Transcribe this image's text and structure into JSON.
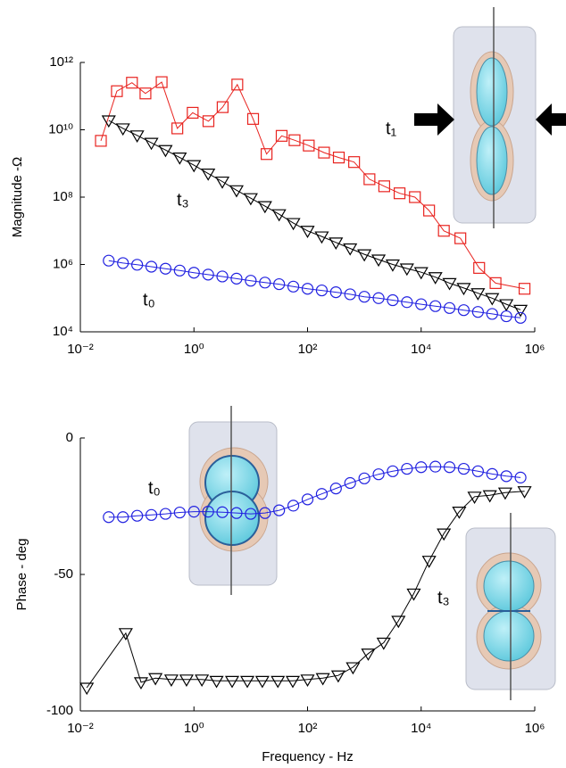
{
  "chart_data": [
    {
      "type": "line",
      "ylabel": "Magnitude -Ω",
      "xscale": "log",
      "yscale": "log",
      "xlim": [
        0.01,
        1000000
      ],
      "ylim": [
        10000,
        1000000000000
      ],
      "xticks": [
        {
          "value": 0.01,
          "label": "10⁻²"
        },
        {
          "value": 1,
          "label": "10⁰"
        },
        {
          "value": 100,
          "label": "10²"
        },
        {
          "value": 10000,
          "label": "10⁴"
        },
        {
          "value": 1000000,
          "label": "10⁶"
        }
      ],
      "yticks": [
        {
          "value": 10000,
          "label": "10⁴"
        },
        {
          "value": 1000000,
          "label": "10⁶"
        },
        {
          "value": 100000000,
          "label": "10⁸"
        },
        {
          "value": 10000000000,
          "label": "10¹⁰"
        },
        {
          "value": 1000000000000,
          "label": "10¹²"
        }
      ],
      "annotations": [
        "t₁",
        "t₃",
        "t₀"
      ],
      "series": [
        {
          "color": "#e8231f",
          "marker": "square",
          "x": [
            0.023,
            0.044,
            0.081,
            0.14,
            0.27,
            0.51,
            0.95,
            1.8,
            3.2,
            5.8,
            11,
            19,
            35,
            59,
            105,
            195,
            355,
            660,
            1230,
            2240,
            4170,
            7760,
            13800,
            25100,
            49000,
            105000,
            204000,
            661000
          ],
          "values": [
            4700000000.0,
            140000000000.0,
            250000000000.0,
            120000000000.0,
            260000000000.0,
            11000000000.0,
            32000000000.0,
            18000000000.0,
            47000000000.0,
            220000000000.0,
            21000000000.0,
            1900000000.0,
            6600000000.0,
            4900000000.0,
            3400000000.0,
            2100000000.0,
            1500000000.0,
            1100000000.0,
            340000000.0,
            210000000.0,
            130000000.0,
            100000000.0,
            40000000.0,
            10000000.0,
            6000000.0,
            790000.0,
            280000.0,
            190000.0
          ]
        },
        {
          "color": "#000000",
          "marker": "triangle",
          "x": [
            0.0316,
            0.0562,
            0.1,
            0.178,
            0.316,
            0.562,
            1,
            1.78,
            3.16,
            5.62,
            10,
            17.8,
            31.6,
            56.2,
            100,
            178,
            316,
            562,
            1000,
            1780,
            3160,
            5620,
            10000,
            17800,
            31600,
            56200,
            100000,
            178000,
            316000,
            562000
          ],
          "values": [
            19000000000.0,
            11000000000.0,
            6800000000.0,
            4100000000.0,
            2500000000.0,
            1500000000.0,
            890000000.0,
            500000000.0,
            290000000.0,
            160000000.0,
            93000000.0,
            54000000.0,
            31000000.0,
            17000000.0,
            10000000.0,
            6800000.0,
            4500000.0,
            3000000.0,
            2000000.0,
            1400000.0,
            1000000.0,
            760000.0,
            590000.0,
            420000.0,
            280000.0,
            200000.0,
            140000.0,
            100000.0,
            66000.0,
            45000.0
          ]
        },
        {
          "color": "#2020e0",
          "marker": "circle",
          "x": [
            0.0316,
            0.0562,
            0.1,
            0.178,
            0.316,
            0.562,
            1,
            1.78,
            3.16,
            5.62,
            10,
            17.8,
            31.6,
            56.2,
            100,
            178,
            316,
            562,
            1000,
            1780,
            3160,
            5620,
            10000,
            17800,
            31600,
            56200,
            100000,
            178000,
            316000,
            562000
          ],
          "values": [
            1300000.0,
            1100000.0,
            980000.0,
            860000.0,
            750000.0,
            660000.0,
            570000.0,
            500000.0,
            440000.0,
            380000.0,
            330000.0,
            290000.0,
            260000.0,
            220000.0,
            190000.0,
            170000.0,
            150000.0,
            130000.0,
            110000.0,
            100000.0,
            87000.0,
            76000.0,
            66000.0,
            58000.0,
            51000.0,
            44000.0,
            39000.0,
            34000.0,
            29000.0,
            26000.0
          ]
        }
      ]
    },
    {
      "type": "line",
      "xlabel": "Frequency - Hz",
      "ylabel": "Phase - deg",
      "xscale": "log",
      "yscale": "linear",
      "xlim": [
        0.01,
        1000000
      ],
      "ylim": [
        -100,
        0
      ],
      "xticks": [
        {
          "value": 0.01,
          "label": "10⁻²"
        },
        {
          "value": 1,
          "label": "10⁰"
        },
        {
          "value": 100,
          "label": "10²"
        },
        {
          "value": 10000,
          "label": "10⁴"
        },
        {
          "value": 1000000,
          "label": "10⁶"
        }
      ],
      "yticks": [
        -100,
        -50,
        0
      ],
      "annotations": [
        "t₀",
        "t₃"
      ],
      "series": [
        {
          "color": "#2020e0",
          "marker": "circle",
          "x": [
            0.0316,
            0.0562,
            0.1,
            0.178,
            0.316,
            0.562,
            1,
            1.78,
            3.16,
            5.62,
            10,
            17.8,
            31.6,
            56.2,
            100,
            178,
            316,
            562,
            1000,
            1780,
            3160,
            5620,
            10000,
            17800,
            31600,
            56200,
            100000,
            178000,
            316000,
            562000
          ],
          "values": [
            -29,
            -29,
            -28.5,
            -28.2,
            -27.8,
            -27.3,
            -27,
            -27,
            -27.2,
            -27.5,
            -27.8,
            -27.5,
            -26.5,
            -24.8,
            -22.5,
            -20.5,
            -18.5,
            -16.5,
            -14.8,
            -13.3,
            -12.2,
            -11.3,
            -10.7,
            -10.5,
            -10.7,
            -11.3,
            -12.2,
            -13.2,
            -14,
            -14.5
          ]
        },
        {
          "color": "#000000",
          "marker": "triangle",
          "x": [
            0.013,
            0.063,
            0.117,
            0.21,
            0.4,
            0.74,
            1.38,
            2.5,
            4.7,
            8.7,
            16,
            30,
            55,
            100,
            186,
            347,
            631,
            1170,
            2190,
            3980,
            7410,
            13800,
            25100,
            46800,
            87100,
            162000,
            302000,
            661000
          ],
          "values": [
            -91.5,
            -71.5,
            -89.5,
            -88,
            -88.5,
            -88.5,
            -88.5,
            -89,
            -89,
            -89,
            -89,
            -89,
            -89,
            -88.5,
            -88,
            -87,
            -84,
            -79,
            -75,
            -67,
            -57,
            -45,
            -35,
            -27,
            -21.5,
            -21,
            -20,
            -19.5
          ]
        }
      ]
    }
  ]
}
